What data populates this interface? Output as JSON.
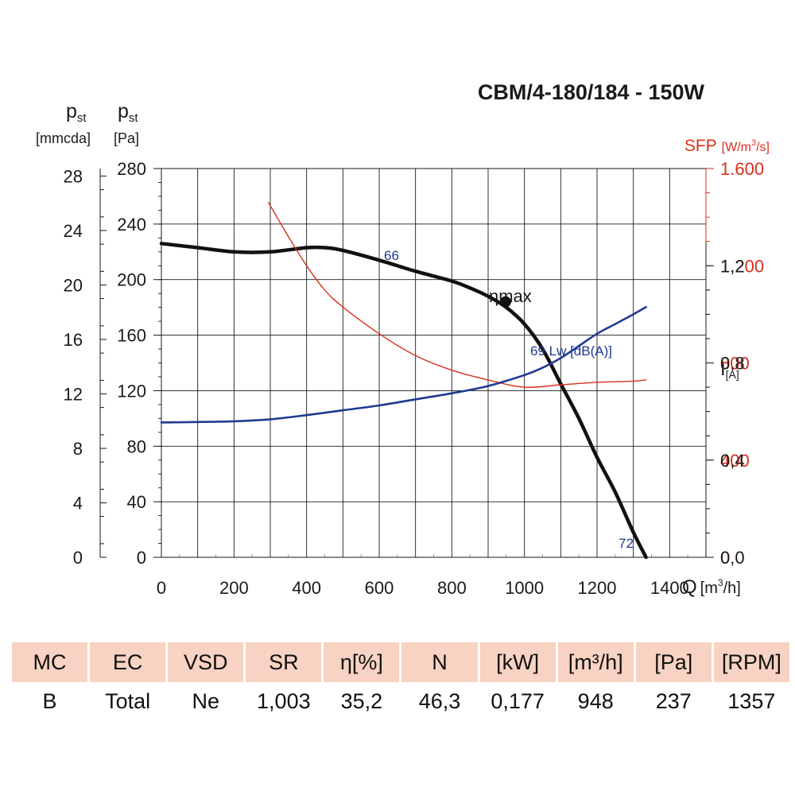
{
  "title": "CBM/4-180/184 - 150W",
  "axes": {
    "left_outer": {
      "symbol": "p",
      "subscript": "st",
      "unit": "[mmcda]",
      "ticks": [
        "0",
        "4",
        "8",
        "12",
        "16",
        "20",
        "24",
        "28"
      ]
    },
    "left_inner": {
      "symbol": "p",
      "subscript": "st",
      "unit": "[Pa]",
      "ticks": [
        "0",
        "40",
        "80",
        "120",
        "160",
        "200",
        "240",
        "280"
      ]
    },
    "right_sfp": {
      "label": "SFP",
      "unit_prefix": "[W/m",
      "unit_sup": "3",
      "unit_suffix": "/s]",
      "ticks": [
        "0",
        "400",
        "800",
        "1.200",
        "1.600"
      ]
    },
    "right_current": {
      "label": "I",
      "unit": "[A]",
      "ticks": [
        "0,0",
        "0,4",
        "0,8",
        "1,2"
      ]
    },
    "x": {
      "label": "Q",
      "unit_prefix": "[m",
      "unit_sup": "3",
      "unit_suffix": "/h]",
      "ticks": [
        "0",
        "200",
        "400",
        "600",
        "800",
        "1000",
        "1200",
        "1400"
      ]
    }
  },
  "chart_data": {
    "type": "line",
    "title": "CBM/4-180/184 - 150W",
    "xlabel": "Q [m3/h]",
    "ylabel": "pst [Pa]",
    "xlim": [
      0,
      1500
    ],
    "ylim": [
      0,
      280
    ],
    "y2lim_sfp": [
      0,
      1600
    ],
    "y3lim_current": [
      0.0,
      1.6
    ],
    "grid": true,
    "series": [
      {
        "name": "",
        "axis": "pst [Pa]",
        "color": "#111111",
        "x": [
          0,
          100,
          200,
          300,
          400,
          450,
          500,
          600,
          700,
          800,
          850,
          900,
          950,
          1000,
          1050,
          1100,
          1150,
          1200,
          1250,
          1300,
          1335
        ],
        "y": [
          226,
          223,
          220,
          220,
          223,
          223,
          221,
          214,
          206,
          199,
          194,
          188,
          180,
          168,
          150,
          125,
          100,
          72,
          47,
          18,
          0
        ]
      },
      {
        "name": "",
        "axis": "SFP [W/m3/s]",
        "color": "#d9301c",
        "x": [
          295,
          350,
          400,
          450,
          500,
          600,
          700,
          800,
          900,
          1000,
          1100,
          1200,
          1300,
          1335
        ],
        "y": [
          1460,
          1320,
          1200,
          1100,
          1030,
          920,
          830,
          770,
          730,
          700,
          710,
          720,
          725,
          730
        ]
      },
      {
        "name": "",
        "axis": "I [A]",
        "color": "#1f3a93",
        "x": [
          0,
          100,
          200,
          300,
          400,
          500,
          600,
          700,
          800,
          900,
          1000,
          1050,
          1100,
          1150,
          1200,
          1250,
          1300,
          1335
        ],
        "y": [
          0.555,
          0.557,
          0.56,
          0.568,
          0.585,
          0.605,
          0.625,
          0.65,
          0.675,
          0.705,
          0.75,
          0.78,
          0.82,
          0.87,
          0.92,
          0.96,
          1.0,
          1.03
        ]
      }
    ],
    "annotations": [
      {
        "text": "66",
        "color": "#1f3a93"
      },
      {
        "text": "69 Lw [dB(A)]",
        "color": "#1f3a93"
      },
      {
        "text": "72",
        "color": "#1f3a93"
      },
      {
        "text": "ηmax",
        "color": "#111111",
        "x": 948,
        "y": 184
      }
    ]
  },
  "table": {
    "headers": [
      "MC",
      "EC",
      "VSD",
      "SR",
      "η[%]",
      "N",
      "[kW]",
      "[m³/h]",
      "[Pa]",
      "[RPM]"
    ],
    "rows": [
      [
        "B",
        "Total",
        "Ne",
        "1,003",
        "35,2",
        "46,3",
        "0,177",
        "948",
        "237",
        "1357"
      ]
    ]
  }
}
